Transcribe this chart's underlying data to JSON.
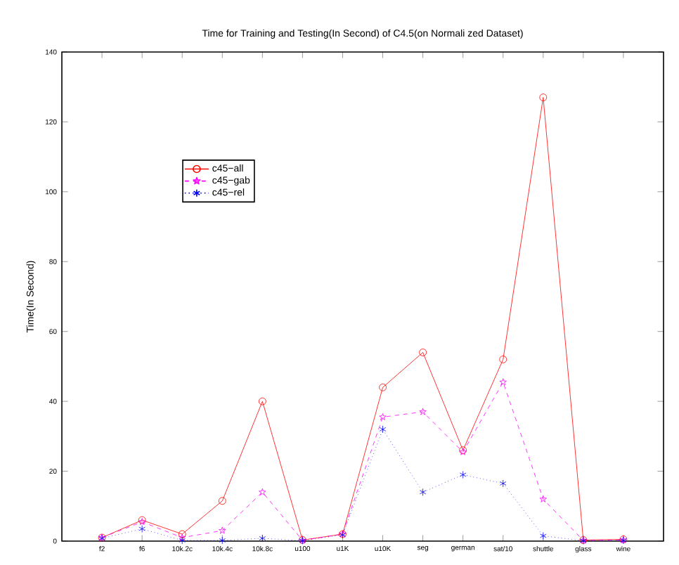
{
  "chart_data": {
    "type": "line",
    "title": "Time for Training and Testing(In Second) of C4.5(on Normali zed Dataset)",
    "ylabel": "Time(In Second)",
    "categories": [
      "f2",
      "f6",
      "10k.2c",
      "10k.4c",
      "10k.8c",
      "u100",
      "u1K",
      "u10K",
      "seg",
      "german",
      "sat/10",
      "shuttle",
      "glass",
      "wine"
    ],
    "series": [
      {
        "name": "c45−all",
        "color": "#ff0000",
        "marker": "circle",
        "line_style": "solid",
        "values": [
          1,
          6,
          2,
          11.5,
          40,
          0.3,
          2,
          44,
          54,
          26,
          52,
          127,
          0.3,
          0.5
        ]
      },
      {
        "name": "c45−gab",
        "color": "#ff00ff",
        "marker": "star",
        "line_style": "dashed",
        "values": [
          1,
          5.5,
          1,
          3,
          14,
          0.2,
          2,
          35.5,
          37,
          25.5,
          45.5,
          12,
          0.2,
          0.3
        ]
      },
      {
        "name": "c45−rel",
        "color": "#0000ff",
        "marker": "cross",
        "line_style": "dotted",
        "values": [
          0.8,
          3.5,
          0.2,
          0.2,
          0.8,
          0.1,
          1.8,
          32,
          14,
          19,
          16.5,
          1.5,
          0.1,
          0.2
        ]
      }
    ],
    "ylim": [
      0,
      140
    ],
    "yticks": [
      0,
      20,
      40,
      60,
      80,
      100,
      120,
      140
    ],
    "grid": false,
    "legend": "top left"
  }
}
